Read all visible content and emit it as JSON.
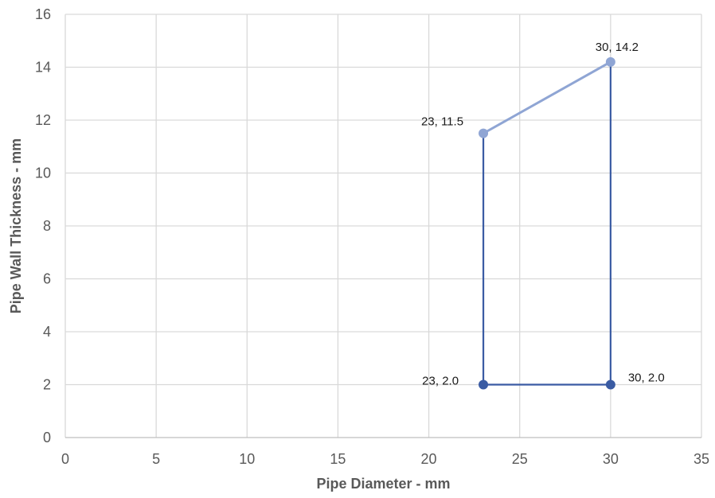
{
  "chart_data": {
    "type": "scatter",
    "xlabel": "Pipe Diameter - mm",
    "ylabel": "Pipe Wall Thickness - mm",
    "xlim": [
      0,
      35
    ],
    "ylim": [
      0,
      16
    ],
    "x_ticks": [
      0,
      5,
      10,
      15,
      20,
      25,
      30,
      35
    ],
    "y_ticks": [
      0,
      2,
      4,
      6,
      8,
      10,
      12,
      14,
      16
    ],
    "grid": true,
    "legend": "none",
    "series": [
      {
        "color": "#8FA5D4",
        "points": [
          {
            "x": 23,
            "y": 11.5,
            "label": "23, 11.5"
          },
          {
            "x": 30,
            "y": 14.2,
            "label": "30, 14.2"
          }
        ]
      },
      {
        "color": "#3A5BA3",
        "points": [
          {
            "x": 23,
            "y": 11.5
          },
          {
            "x": 23,
            "y": 2.0,
            "label": "23, 2.0"
          },
          {
            "x": 30,
            "y": 2.0,
            "label": "30, 2.0"
          },
          {
            "x": 30,
            "y": 14.2
          }
        ]
      }
    ]
  }
}
